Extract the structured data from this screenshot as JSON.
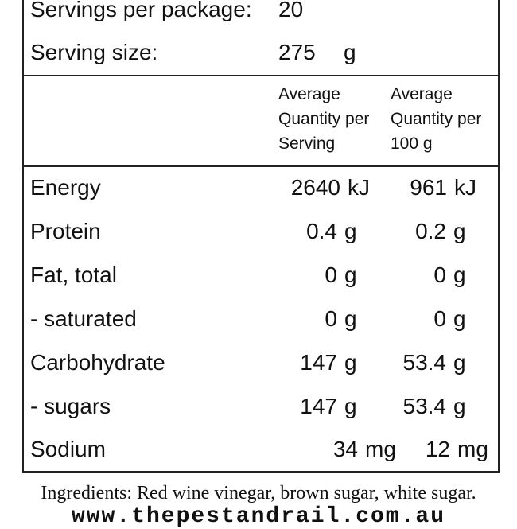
{
  "header": {
    "servings_label": "Servings per package:",
    "servings_value": "20",
    "serving_size_label": "Serving size:",
    "serving_size_value": "275",
    "serving_size_unit": "g"
  },
  "columns": {
    "per_serving": "Average\nQuantity per\nServing",
    "per_100g": "Average\nQuantity per\n100 g"
  },
  "nutrients": [
    {
      "name": "Energy",
      "serving": "2640",
      "serving_unit": "kJ",
      "per100": "961",
      "per100_unit": "kJ"
    },
    {
      "name": "Protein",
      "serving": "0.4",
      "serving_unit": "g",
      "per100": "0.2",
      "per100_unit": "g"
    },
    {
      "name": "Fat, total",
      "serving": "0",
      "serving_unit": "g",
      "per100": "0",
      "per100_unit": "g"
    },
    {
      "name": "- saturated",
      "serving": "0",
      "serving_unit": "g",
      "per100": "0",
      "per100_unit": "g"
    },
    {
      "name": "Carbohydrate",
      "serving": "147",
      "serving_unit": "g",
      "per100": "53.4",
      "per100_unit": "g"
    },
    {
      "name": "- sugars",
      "serving": "147",
      "serving_unit": "g",
      "per100": "53.4",
      "per100_unit": "g"
    },
    {
      "name": "Sodium",
      "serving": "34",
      "serving_unit": "mg",
      "per100": "12",
      "per100_unit": "mg"
    }
  ],
  "ingredients": "Ingredients: Red wine vinegar, brown sugar, white sugar.",
  "website": "www.thepestandrail.com.au"
}
